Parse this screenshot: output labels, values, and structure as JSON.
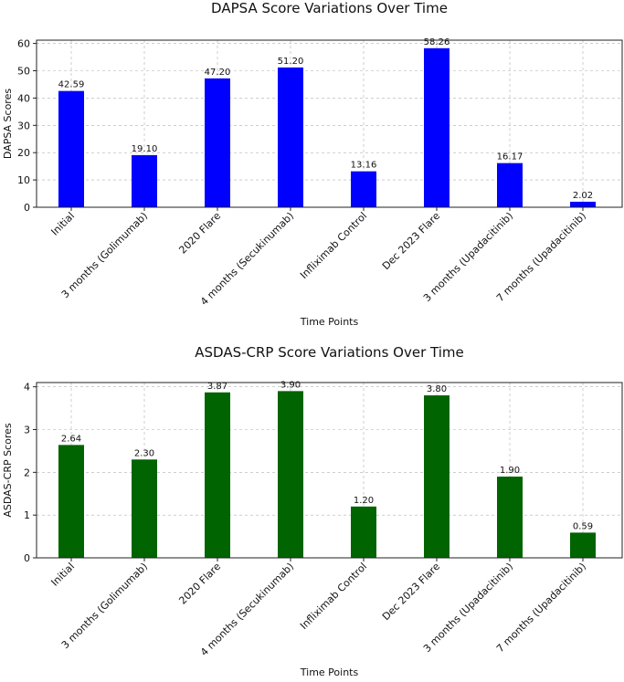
{
  "chart_data": [
    {
      "type": "bar",
      "title": "DAPSA Score Variations Over Time",
      "xlabel": "Time Points",
      "ylabel": "DAPSA Scores",
      "categories": [
        "Initial",
        "3 months (Golimumab)",
        "2020 Flare",
        "4 months (Secukinumab)",
        "Infliximab Control",
        "Dec 2023 Flare",
        "3 months (Upadacitinib)",
        "7 months (Upadacitinib)"
      ],
      "values": [
        42.59,
        19.1,
        47.2,
        51.2,
        13.16,
        58.26,
        16.17,
        2.02
      ],
      "value_labels": [
        "42.59",
        "19.10",
        "47.20",
        "51.20",
        "13.16",
        "58.26",
        "16.17",
        "2.02"
      ],
      "ylim": [
        0,
        61.2
      ],
      "yticks": [
        0,
        10,
        20,
        30,
        40,
        50,
        60
      ],
      "grid": true,
      "color": "#0000ff"
    },
    {
      "type": "bar",
      "title": "ASDAS-CRP Score Variations Over Time",
      "xlabel": "Time Points",
      "ylabel": "ASDAS-CRP Scores",
      "categories": [
        "Initial",
        "3 months (Golimumab)",
        "2020 Flare",
        "4 months (Secukinumab)",
        "Infliximab Control",
        "Dec 2023 Flare",
        "3 months (Upadacitinib)",
        "7 months (Upadacitinib)"
      ],
      "values": [
        2.64,
        2.3,
        3.87,
        3.9,
        1.2,
        3.8,
        1.9,
        0.59
      ],
      "value_labels": [
        "2.64",
        "2.30",
        "3.87",
        "3.90",
        "1.20",
        "3.80",
        "1.90",
        "0.59"
      ],
      "ylim": [
        0,
        4.1
      ],
      "yticks": [
        0,
        1,
        2,
        3,
        4
      ],
      "grid": true,
      "color": "#006400"
    }
  ]
}
